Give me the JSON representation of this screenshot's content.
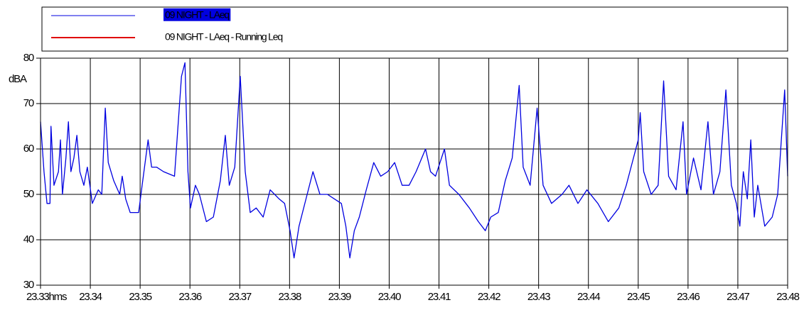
{
  "chart_data": {
    "type": "line",
    "y_label": "dBA",
    "xlim": [
      0,
      15
    ],
    "ylim": [
      30,
      80
    ],
    "yticks": [
      30,
      40,
      50,
      60,
      70,
      80
    ],
    "xticks": [
      {
        "value": 0,
        "label": "23.33hms"
      },
      {
        "value": 1,
        "label": "23.34"
      },
      {
        "value": 2,
        "label": "23.35"
      },
      {
        "value": 3,
        "label": "23.36"
      },
      {
        "value": 4,
        "label": "23.37"
      },
      {
        "value": 5,
        "label": "23.38"
      },
      {
        "value": 6,
        "label": "23.39"
      },
      {
        "value": 7,
        "label": "23.40"
      },
      {
        "value": 8,
        "label": "23.41"
      },
      {
        "value": 9,
        "label": "23.42"
      },
      {
        "value": 10,
        "label": "23.43"
      },
      {
        "value": 11,
        "label": "23.44"
      },
      {
        "value": 12,
        "label": "23.45"
      },
      {
        "value": 13,
        "label": "23.46"
      },
      {
        "value": 14,
        "label": "23.47"
      },
      {
        "value": 15,
        "label": "23.48"
      }
    ],
    "grid": true,
    "x": [
      0,
      0.07,
      0.13,
      0.19,
      0.21,
      0.27,
      0.36,
      0.4,
      0.44,
      0.51,
      0.56,
      0.61,
      0.67,
      0.73,
      0.79,
      0.87,
      0.94,
      1.04,
      1.16,
      1.23,
      1.3,
      1.36,
      1.47,
      1.59,
      1.64,
      1.71,
      1.8,
      1.97,
      2.04,
      2.16,
      2.23,
      2.33,
      2.47,
      2.69,
      2.83,
      2.9,
      2.96,
      3.01,
      3.11,
      3.19,
      3.33,
      3.47,
      3.61,
      3.71,
      3.79,
      3.9,
      4.01,
      4.11,
      4.21,
      4.33,
      4.47,
      4.61,
      4.79,
      4.9,
      5.01,
      5.09,
      5.19,
      5.33,
      5.47,
      5.61,
      5.76,
      5.9,
      6.04,
      6.13,
      6.21,
      6.3,
      6.4,
      6.54,
      6.69,
      6.83,
      6.97,
      7.11,
      7.26,
      7.4,
      7.54,
      7.73,
      7.83,
      7.93,
      8.11,
      8.21,
      8.4,
      8.61,
      8.79,
      8.93,
      9.04,
      9.19,
      9.33,
      9.47,
      9.61,
      9.69,
      9.83,
      9.97,
      10.09,
      10.26,
      10.47,
      10.61,
      10.79,
      10.97,
      11.19,
      11.4,
      11.61,
      11.76,
      12,
      12.04,
      12.11,
      12.26,
      12.4,
      12.51,
      12.61,
      12.76,
      12.9,
      12.97,
      13.11,
      13.26,
      13.4,
      13.51,
      13.64,
      13.76,
      13.87,
      13.97,
      14.04,
      14.11,
      14.19,
      14.26,
      14.33,
      14.4,
      14.54,
      14.69,
      14.8,
      14.94,
      15
    ],
    "series": [
      {
        "name": "09 NIGHT - LAeq",
        "color": "#0000e0",
        "values": [
          66,
          55,
          48,
          48,
          65,
          52,
          55,
          62,
          50,
          58,
          66,
          55,
          58,
          63,
          55,
          52,
          56,
          48,
          51,
          50,
          69,
          57,
          53,
          50,
          54,
          49,
          46,
          46,
          52,
          62,
          56,
          56,
          55,
          54,
          76,
          79,
          55,
          47,
          52,
          50,
          44,
          45,
          53,
          63,
          52,
          56,
          76,
          55,
          46,
          47,
          45,
          51,
          49,
          48,
          42,
          36,
          43,
          49,
          55,
          50,
          50,
          49,
          48,
          43,
          36,
          42,
          45,
          51,
          57,
          54,
          55,
          57,
          52,
          52,
          55,
          60,
          55,
          54,
          60,
          52,
          50,
          47,
          44,
          42,
          45,
          46,
          53,
          58,
          74,
          56,
          52,
          69,
          52,
          48,
          50,
          52,
          48,
          51,
          48,
          44,
          47,
          52,
          62,
          68,
          55,
          50,
          52,
          75,
          54,
          51,
          66,
          50,
          58,
          51,
          66,
          50,
          55,
          73,
          52,
          48,
          43,
          55,
          49,
          62,
          45,
          52,
          43,
          45,
          50,
          73,
          54
        ]
      },
      {
        "name": "09 NIGHT - LAeq - Running Leq",
        "color": "#e00000",
        "values": [
          null,
          null,
          null,
          null,
          null,
          null,
          null,
          null,
          null,
          null,
          null,
          null,
          null,
          null,
          null,
          null,
          null,
          null,
          null,
          null,
          null,
          null,
          null,
          null,
          null,
          null,
          null,
          null,
          null,
          null,
          null,
          null,
          null,
          null,
          null,
          null,
          null,
          null,
          null,
          null,
          null,
          null,
          null,
          null,
          null,
          null,
          null,
          null,
          null,
          null,
          null,
          null,
          null,
          null,
          null,
          null,
          null,
          null,
          null,
          null,
          null,
          null,
          null,
          null,
          null,
          null,
          null,
          null,
          null,
          null,
          null,
          null,
          null,
          null,
          null,
          null,
          null,
          null,
          null,
          null,
          null,
          null,
          null,
          null,
          null,
          null,
          null,
          null,
          null,
          null,
          null,
          null,
          null,
          null,
          null,
          null,
          null,
          null,
          null,
          null,
          null,
          null,
          null,
          null,
          null,
          null,
          null,
          null,
          null,
          null,
          null,
          null,
          null,
          null,
          null,
          null,
          null,
          null,
          null,
          null,
          null,
          null,
          null,
          null,
          null,
          null,
          null,
          null,
          null,
          null,
          null
        ]
      }
    ]
  }
}
